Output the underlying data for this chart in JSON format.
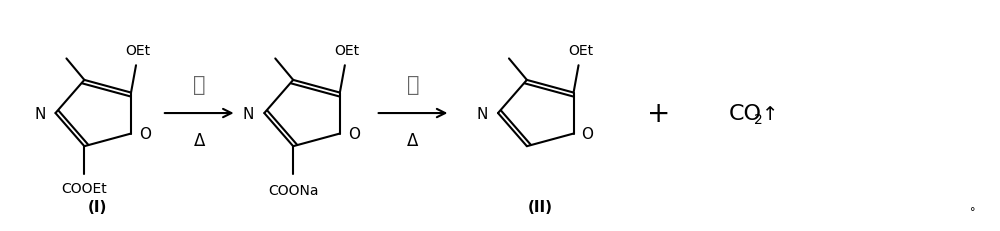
{
  "background_color": "#ffffff",
  "fig_width": 10.0,
  "fig_height": 2.32,
  "dpi": 100,
  "font_color": "#000000",
  "arrow1_above": "碱",
  "arrow2_above": "酸",
  "arrow_below": "Δ",
  "compound_I_label": "(I)",
  "compound_II_label": "(II)",
  "plus_sign": "+",
  "co2_text": "CO",
  "co2_sub": "2",
  "co2_arrow": "↑",
  "chinese_color": "#666666"
}
